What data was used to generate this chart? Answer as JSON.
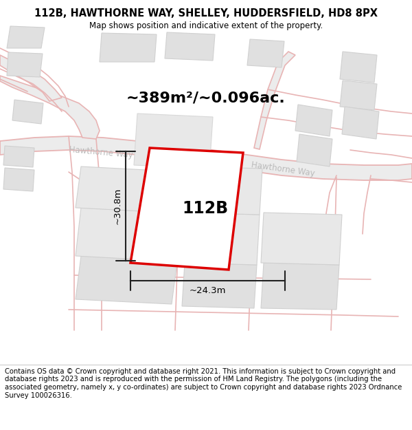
{
  "title": "112B, HAWTHORNE WAY, SHELLEY, HUDDERSFIELD, HD8 8PX",
  "subtitle": "Map shows position and indicative extent of the property.",
  "area_label": "~389m²/~0.096ac.",
  "property_label": "112B",
  "width_label": "~24.3m",
  "height_label": "~30.8m",
  "footer": "Contains OS data © Crown copyright and database right 2021. This information is subject to Crown copyright and database rights 2023 and is reproduced with the permission of HM Land Registry. The polygons (including the associated geometry, namely x, y co-ordinates) are subject to Crown copyright and database rights 2023 Ordnance Survey 100026316.",
  "bg_color": "#ffffff",
  "road_fill": "#ececec",
  "road_stroke": "#e8b4b4",
  "building_fill": "#e0e0e0",
  "building_stroke": "#d0d0d0",
  "property_fill": "#ffffff",
  "property_stroke": "#dd0000",
  "dim_color": "#222222",
  "title_fontsize": 10.5,
  "subtitle_fontsize": 8.5,
  "area_fontsize": 16,
  "property_fontsize": 17,
  "road_label_color": "#bbbbbb",
  "footer_fontsize": 7.2
}
